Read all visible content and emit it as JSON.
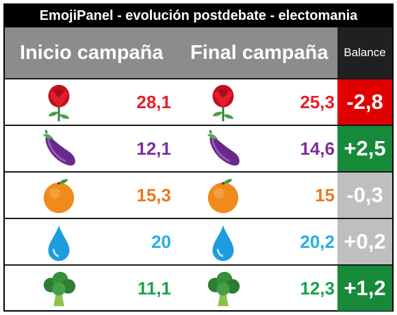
{
  "title": "EmojiPanel - evolución postdebate - electomania",
  "headers": {
    "start": "Inicio campaña",
    "end": "Final campaña",
    "balance": "Balance"
  },
  "colors": {
    "rose": "#ee1c25",
    "eggplant": "#7a2f9e",
    "orange": "#e8791e",
    "drop": "#27aee0",
    "broccoli": "#18a34a",
    "neg": "#e00000",
    "pos": "#178a3a",
    "neutral": "#bfbfbf"
  },
  "rows": [
    {
      "icon": "rose-icon",
      "start": "28,1",
      "end": "25,3",
      "balance": "-2,8",
      "trend": "negative"
    },
    {
      "icon": "eggplant-icon",
      "start": "12,1",
      "end": "14,6",
      "balance": "+2,5",
      "trend": "positive"
    },
    {
      "icon": "orange-icon",
      "start": "15,3",
      "end": "15",
      "balance": "-0,3",
      "trend": "neutral"
    },
    {
      "icon": "droplet-icon",
      "start": "20",
      "end": "20,2",
      "balance": "+0,2",
      "trend": "neutral"
    },
    {
      "icon": "broccoli-icon",
      "start": "11,1",
      "end": "12,3",
      "balance": "+1,2",
      "trend": "positive"
    }
  ]
}
